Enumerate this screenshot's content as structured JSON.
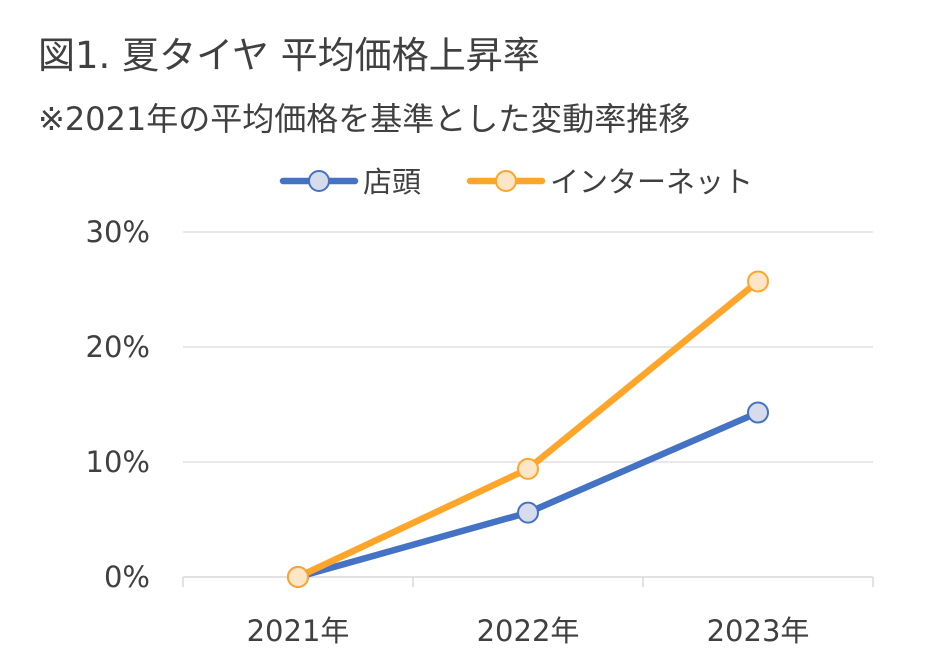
{
  "title": "図1. 夏タイヤ 平均価格上昇率",
  "subtitle": "※2021年の平均価格を基準とした変動率推移",
  "chart_data": {
    "type": "line",
    "categories": [
      "2021年",
      "2022年",
      "2023年"
    ],
    "series": [
      {
        "name": "店頭",
        "values": [
          0.0,
          5.6,
          14.3
        ],
        "color": "#4472C4",
        "marker_fill": "#D6DCEC"
      },
      {
        "name": "インターネット",
        "values": [
          0.0,
          9.4,
          25.7
        ],
        "color": "#FFA52A",
        "marker_fill": "#FDE5C7"
      }
    ],
    "y_ticks": [
      0,
      10,
      20,
      30
    ],
    "y_tick_labels": [
      "0%",
      "10%",
      "20%",
      "30%"
    ],
    "ylim": [
      0,
      30
    ],
    "y_unit": "%",
    "grid": true,
    "legend_position": "top-center",
    "gridline_color": "#D9D9D9",
    "axis_line_color": "#D9D9D9",
    "text_color": "#404040"
  }
}
